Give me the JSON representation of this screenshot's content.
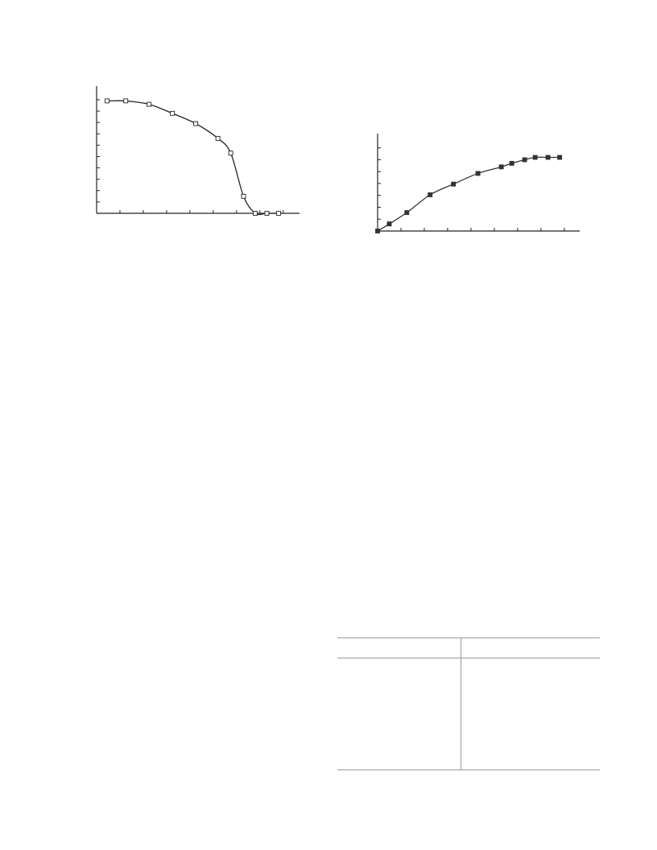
{
  "chart_data": [
    {
      "type": "line",
      "marker": "open-square",
      "color": "#222222",
      "x": [
        0.45,
        1.25,
        2.25,
        3.25,
        4.25,
        5.2,
        5.75,
        6.3,
        6.8,
        7.3,
        7.8
      ],
      "values": [
        9.9,
        9.9,
        9.6,
        8.8,
        7.9,
        6.6,
        5.3,
        1.5,
        0,
        0,
        0
      ],
      "xlim": [
        0,
        8.7
      ],
      "ylim": [
        0,
        11.2
      ],
      "xticks": [
        1,
        2,
        3,
        4,
        5,
        6,
        7,
        8
      ],
      "yticks": [
        1,
        2,
        3,
        4,
        5,
        6,
        7,
        8,
        9,
        10
      ]
    },
    {
      "type": "line",
      "marker": "filled-square",
      "color": "#333333",
      "x": [
        0,
        0.5,
        1.25,
        2.25,
        3.25,
        4.3,
        5.3,
        5.75,
        6.3,
        6.75,
        7.3,
        7.8
      ],
      "values": [
        0,
        0.6,
        1.55,
        3.05,
        3.95,
        4.85,
        5.4,
        5.7,
        6.0,
        6.2,
        6.2,
        6.2
      ],
      "xlim": [
        0,
        8.66
      ],
      "ylim": [
        0,
        8.2
      ],
      "xticks": [
        1,
        2,
        3,
        4,
        5,
        6,
        7,
        8
      ],
      "yticks": [
        1,
        2,
        3,
        4,
        5,
        6,
        7
      ]
    }
  ]
}
